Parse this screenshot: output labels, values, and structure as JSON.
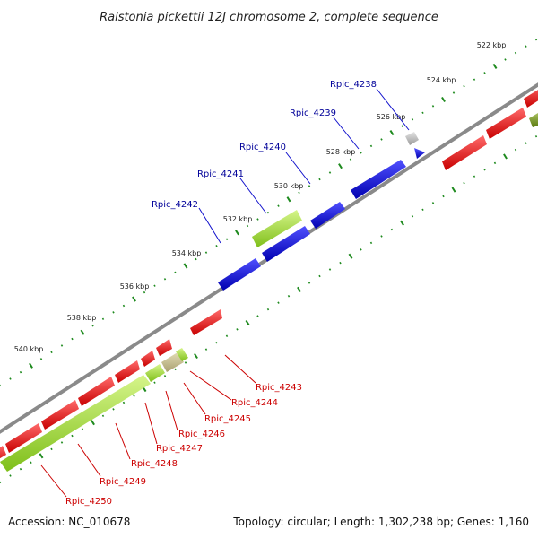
{
  "title": "Ralstonia pickettii 12J chromosome 2, complete sequence",
  "footer": {
    "accession": "Accession: NC_010678",
    "summary": "Topology: circular; Length: 1,302,238 bp; Genes: 1,160"
  },
  "colors": {
    "forward_gene": "#1010e0",
    "reverse_gene": "#ee1010",
    "rna_gene": "#9bd42a",
    "pseudo_gene": "#b8b8b8",
    "backbone": "#888888",
    "tick": "#1e8a1e",
    "forward_label": "#000099",
    "reverse_label": "#cc0000"
  },
  "ruler_labels": [
    "522 kbp",
    "524 kbp",
    "526 kbp",
    "528 kbp",
    "530 kbp",
    "532 kbp",
    "534 kbp",
    "536 kbp",
    "538 kbp",
    "540 kbp"
  ],
  "gene_labels_forward": [
    "Rpic_4238",
    "Rpic_4239",
    "Rpic_4240",
    "Rpic_4241",
    "Rpic_4242"
  ],
  "gene_labels_reverse": [
    "Rpic_4243",
    "Rpic_4244",
    "Rpic_4245",
    "Rpic_4246",
    "Rpic_4247",
    "Rpic_4248",
    "Rpic_4249",
    "Rpic_4250"
  ]
}
